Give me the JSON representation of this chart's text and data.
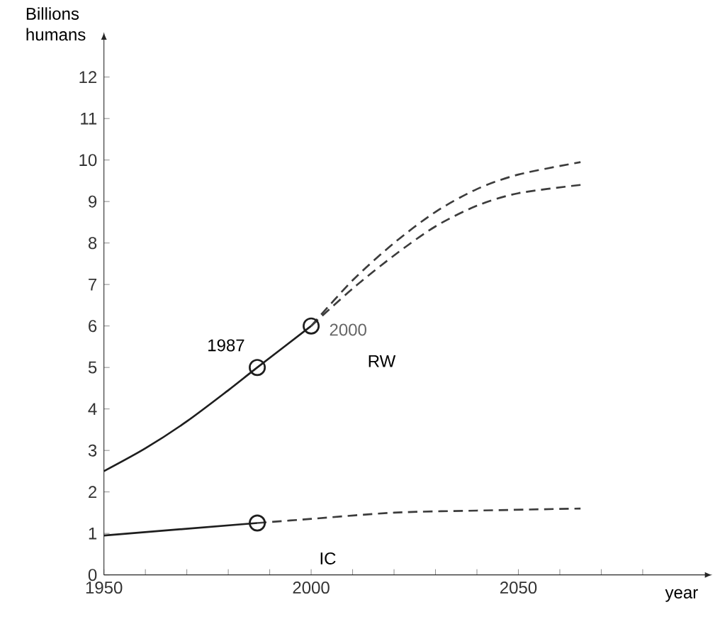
{
  "chart_data": {
    "type": "line",
    "xlabel": "year",
    "ylabel": "Billions humans",
    "xlim": [
      1950,
      2095
    ],
    "ylim": [
      0,
      12.9
    ],
    "xticks": [
      1950,
      {
        "value": 1960,
        "label": null
      },
      {
        "value": 1970,
        "label": null
      },
      {
        "value": 1980,
        "label": null
      },
      {
        "value": 1990,
        "label": null
      },
      2000,
      {
        "value": 2010,
        "label": null
      },
      {
        "value": 2020,
        "label": null
      },
      {
        "value": 2030,
        "label": null
      },
      {
        "value": 2040,
        "label": null
      },
      2050,
      {
        "value": 2060,
        "label": null
      },
      {
        "value": 2070,
        "label": null
      },
      {
        "value": 2080,
        "label": null
      }
    ],
    "yticks": [
      0,
      1,
      2,
      3,
      4,
      5,
      6,
      7,
      8,
      9,
      10,
      11,
      12
    ],
    "series": [
      {
        "name": "RW",
        "color": "#1e1e1e",
        "line_style": "solid",
        "x": [
          1950,
          1960,
          1970,
          1980,
          1987,
          2000
        ],
        "values": [
          2.5,
          3.05,
          3.7,
          4.45,
          5,
          6
        ]
      },
      {
        "color": "#3c3c3c",
        "line_style": "dashed",
        "x": [
          2000,
          2010,
          2020,
          2030,
          2040,
          2050,
          2065
        ],
        "values": [
          6,
          7.1,
          8.0,
          8.75,
          9.3,
          9.65,
          9.95
        ]
      },
      {
        "color": "#3c3c3c",
        "line_style": "dashed",
        "x": [
          2000,
          2010,
          2020,
          2030,
          2040,
          2050,
          2065
        ],
        "values": [
          6,
          6.9,
          7.7,
          8.4,
          8.9,
          9.2,
          9.4
        ]
      },
      {
        "name": "IC",
        "color": "#1e1e1e",
        "line_style": "solid",
        "x": [
          1950,
          1987
        ],
        "values": [
          0.95,
          1.25
        ]
      },
      {
        "color": "#3c3c3c",
        "line_style": "dashed",
        "x": [
          1987,
          2000,
          2020,
          2040,
          2065
        ],
        "values": [
          1.25,
          1.35,
          1.5,
          1.55,
          1.6
        ]
      },
      {
        "type": "scatter",
        "marker": "circle",
        "color": "#1e1e1e",
        "x": [
          1987,
          2000,
          1987
        ],
        "values": [
          5,
          6,
          1.25
        ]
      }
    ],
    "annotations": [
      {
        "text": "1987",
        "x": 1987,
        "y": 5
      },
      {
        "text": "2000",
        "x": 2000,
        "y": 6
      }
    ]
  }
}
